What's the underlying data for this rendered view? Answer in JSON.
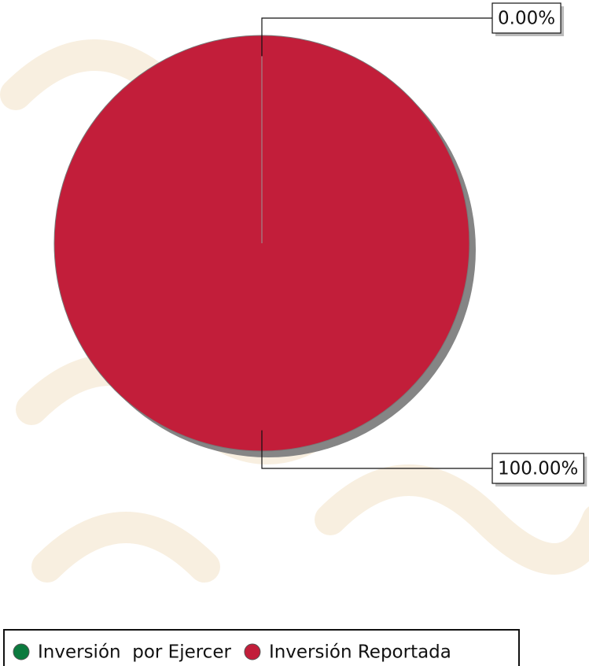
{
  "chart_data": {
    "type": "pie",
    "series": [
      {
        "name": "Inversión  por Ejercer",
        "color": "#0b7a3e",
        "values": [
          0
        ],
        "value_labels": [
          "0.00%"
        ]
      },
      {
        "name": "Inversión Reportada",
        "color": "#c21e3a",
        "values": [
          100
        ],
        "value_labels": [
          "100.00%"
        ]
      }
    ]
  }
}
